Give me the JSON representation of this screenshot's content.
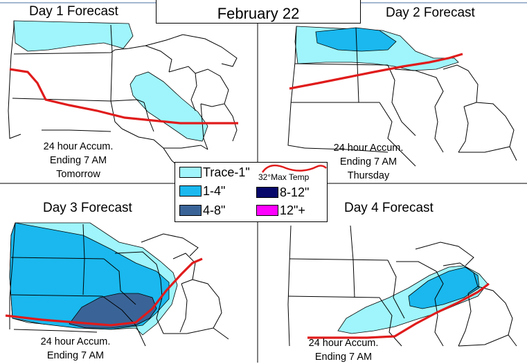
{
  "header": {
    "date": "February 22"
  },
  "panels": [
    {
      "title": "Day 1 Forecast",
      "caption": [
        "24 hour Accum.",
        "Ending 7 AM",
        "Tomorrow"
      ]
    },
    {
      "title": "Day 2 Forecast",
      "caption": [
        "24 hour Accum.",
        "Ending 7 AM",
        "Thursday"
      ]
    },
    {
      "title": "Day 3 Forecast",
      "caption": [
        "24 hour Accum.",
        "Ending 7 AM"
      ]
    },
    {
      "title": "Day 4 Forecast",
      "caption": [
        "24 hour Accum.",
        "Ending 7 AM"
      ]
    }
  ],
  "legend": {
    "items": [
      {
        "label": "Trace-1\"",
        "color": "#9ff5fb"
      },
      {
        "label": "1-4\"",
        "color": "#1ab8ee"
      },
      {
        "label": "4-8\"",
        "color": "#3a6497"
      },
      {
        "label": "8-12\"",
        "color": "#08086a"
      },
      {
        "label": "12\"+",
        "color": "#ff00ff"
      }
    ],
    "max_temp_label": "32°Max Temp",
    "max_temp_color": "#e01b1b"
  }
}
